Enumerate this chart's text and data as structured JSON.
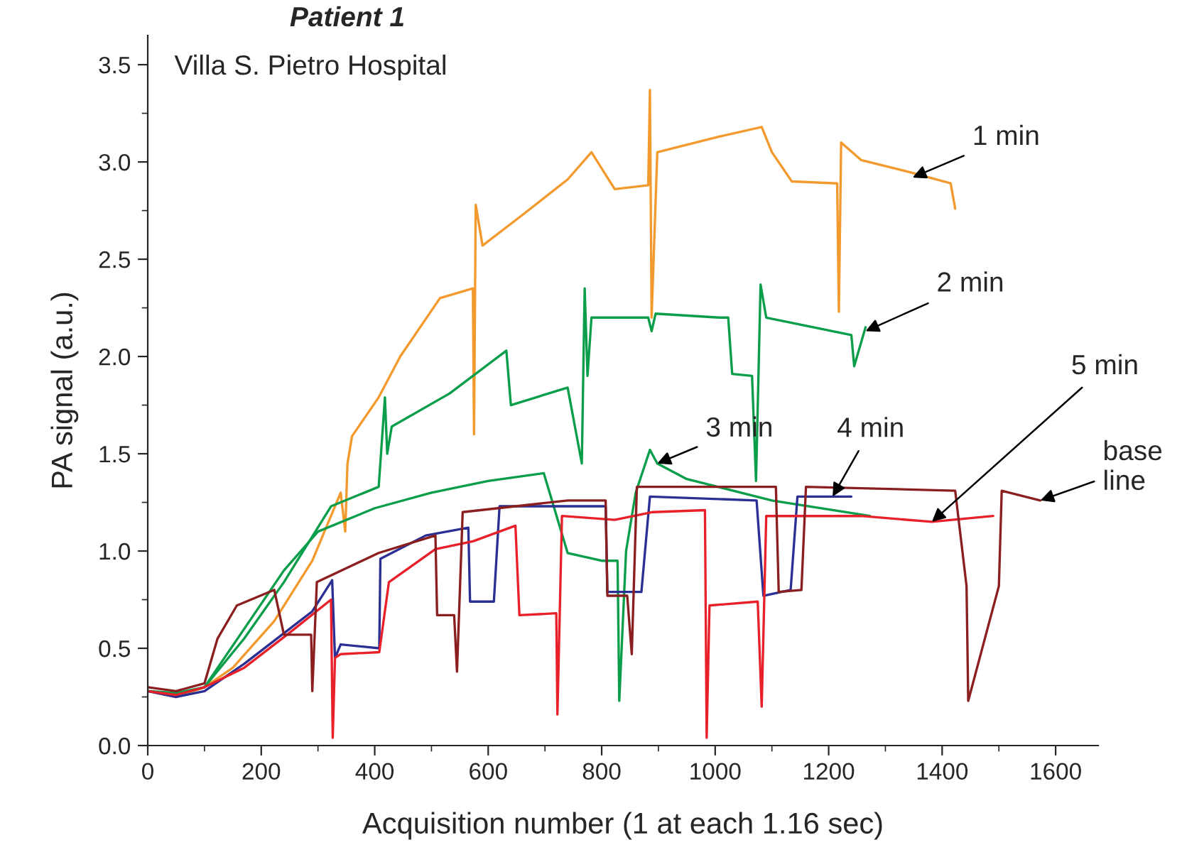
{
  "chart_data": {
    "type": "line",
    "title": "Patient 1",
    "subtitle": "Villa S. Pietro Hospital",
    "xlabel": "Acquisition number (1 at each 1.16 sec)",
    "ylabel": "PA signal (a.u.)",
    "xlim": [
      0,
      1675
    ],
    "ylim": [
      0,
      3.65
    ],
    "xticks": [
      0,
      200,
      400,
      600,
      800,
      1000,
      1200,
      1400,
      1600
    ],
    "yticks": [
      {
        "value": 0,
        "label": "0.0"
      },
      {
        "value": 0.5,
        "label": "0.5"
      },
      {
        "value": 1,
        "label": "1.0"
      },
      {
        "value": 1.5,
        "label": "1.5"
      },
      {
        "value": 2,
        "label": "2.0"
      },
      {
        "value": 2.5,
        "label": "2.5"
      },
      {
        "value": 3,
        "label": "3.0"
      },
      {
        "value": 3.5,
        "label": "3.5"
      }
    ],
    "grid": false,
    "legend": false,
    "line_style": "solid",
    "marker": "none",
    "series": [
      {
        "color": "#f39a2e",
        "x": [
          0,
          50,
          100,
          150,
          223,
          290,
          340,
          348,
          352,
          360,
          407,
          445,
          515,
          573,
          575,
          578,
          590,
          657,
          740,
          782,
          823,
          882,
          885,
          888,
          898,
          1007,
          1082,
          1100,
          1135,
          1215,
          1218,
          1222,
          1257,
          1340,
          1415,
          1423
        ],
        "values": [
          0.28,
          0.25,
          0.3,
          0.4,
          0.64,
          0.95,
          1.3,
          1.1,
          1.45,
          1.59,
          1.79,
          2.0,
          2.3,
          2.35,
          1.6,
          2.78,
          2.57,
          2.72,
          2.91,
          3.05,
          2.86,
          2.88,
          3.37,
          2.2,
          3.05,
          3.13,
          3.18,
          3.05,
          2.9,
          2.89,
          2.23,
          3.1,
          3.01,
          2.95,
          2.89,
          2.76
        ]
      },
      {
        "color": "#0a9e4a",
        "x": [
          0,
          50,
          100,
          170,
          240,
          323,
          407,
          418,
          422,
          430,
          532,
          632,
          640,
          740,
          765,
          770,
          775,
          782,
          882,
          888,
          895,
          1007,
          1023,
          1030,
          1065,
          1072,
          1080,
          1090,
          1173,
          1240,
          1245,
          1265
        ],
        "values": [
          0.28,
          0.27,
          0.3,
          0.55,
          0.84,
          1.23,
          1.33,
          1.79,
          1.5,
          1.64,
          1.81,
          2.03,
          1.75,
          1.84,
          1.45,
          2.35,
          1.9,
          2.2,
          2.2,
          2.13,
          2.22,
          2.2,
          2.2,
          1.91,
          1.9,
          1.36,
          2.37,
          2.2,
          2.15,
          2.11,
          1.95,
          2.15
        ]
      },
      {
        "color": "#0a9e4a",
        "x": [
          0,
          50,
          100,
          170,
          240,
          300,
          400,
          500,
          600,
          698,
          740,
          800,
          828,
          831,
          843,
          860,
          885,
          898,
          950,
          1100,
          1273
        ],
        "values": [
          0.28,
          0.26,
          0.3,
          0.6,
          0.9,
          1.1,
          1.22,
          1.3,
          1.36,
          1.4,
          0.99,
          0.95,
          0.95,
          0.23,
          1.0,
          1.3,
          1.52,
          1.45,
          1.37,
          1.26,
          1.18
        ]
      },
      {
        "color": "#2b2f94",
        "x": [
          0,
          50,
          100,
          170,
          250,
          290,
          325,
          330,
          340,
          408,
          410,
          490,
          565,
          568,
          610,
          620,
          740,
          807,
          810,
          870,
          885,
          1073,
          1085,
          1133,
          1145,
          1207,
          1240
        ],
        "values": [
          0.28,
          0.25,
          0.28,
          0.42,
          0.6,
          0.69,
          0.85,
          0.45,
          0.52,
          0.5,
          0.96,
          1.08,
          1.12,
          0.74,
          0.74,
          1.23,
          1.23,
          1.23,
          0.79,
          0.79,
          1.28,
          1.26,
          0.77,
          0.8,
          1.28,
          1.28,
          1.28
        ]
      },
      {
        "color": "#e8202a",
        "x": [
          0,
          50,
          100,
          170,
          250,
          323,
          326,
          330,
          340,
          408,
          425,
          507,
          573,
          648,
          655,
          720,
          722,
          730,
          823,
          890,
          982,
          985,
          990,
          1075,
          1082,
          1090,
          1257,
          1382,
          1490
        ],
        "values": [
          0.28,
          0.26,
          0.3,
          0.4,
          0.58,
          0.75,
          0.04,
          0.45,
          0.47,
          0.48,
          0.84,
          1.01,
          1.05,
          1.13,
          0.67,
          0.68,
          0.16,
          1.18,
          1.16,
          1.2,
          1.21,
          0.04,
          0.72,
          0.74,
          0.2,
          1.18,
          1.18,
          1.15,
          1.18
        ]
      },
      {
        "color": "#8b1f1f",
        "x": [
          0,
          50,
          100,
          123,
          157,
          223,
          240,
          288,
          290,
          298,
          407,
          507,
          510,
          540,
          545,
          555,
          740,
          807,
          810,
          845,
          853,
          862,
          1107,
          1112,
          1152,
          1160,
          1423,
          1443,
          1446,
          1500,
          1505,
          1573
        ],
        "values": [
          0.3,
          0.28,
          0.32,
          0.55,
          0.72,
          0.8,
          0.57,
          0.57,
          0.28,
          0.84,
          0.99,
          1.08,
          0.67,
          0.67,
          0.38,
          1.2,
          1.26,
          1.26,
          0.77,
          0.77,
          0.47,
          1.33,
          1.33,
          0.79,
          0.8,
          1.33,
          1.31,
          0.82,
          0.23,
          0.82,
          1.31,
          1.26
        ]
      }
    ],
    "annotations": [
      {
        "text": "1 min",
        "x": 1348,
        "y": 2.92
      },
      {
        "text": "2 min",
        "x": 1265,
        "y": 2.13
      },
      {
        "text": "3 min",
        "x": 898,
        "y": 1.45
      },
      {
        "text": "4 min",
        "x": 1207,
        "y": 1.28
      },
      {
        "text": "5 min",
        "x": 1382,
        "y": 1.15
      },
      {
        "text": "base\nline",
        "x": 1573,
        "y": 1.26
      }
    ]
  }
}
